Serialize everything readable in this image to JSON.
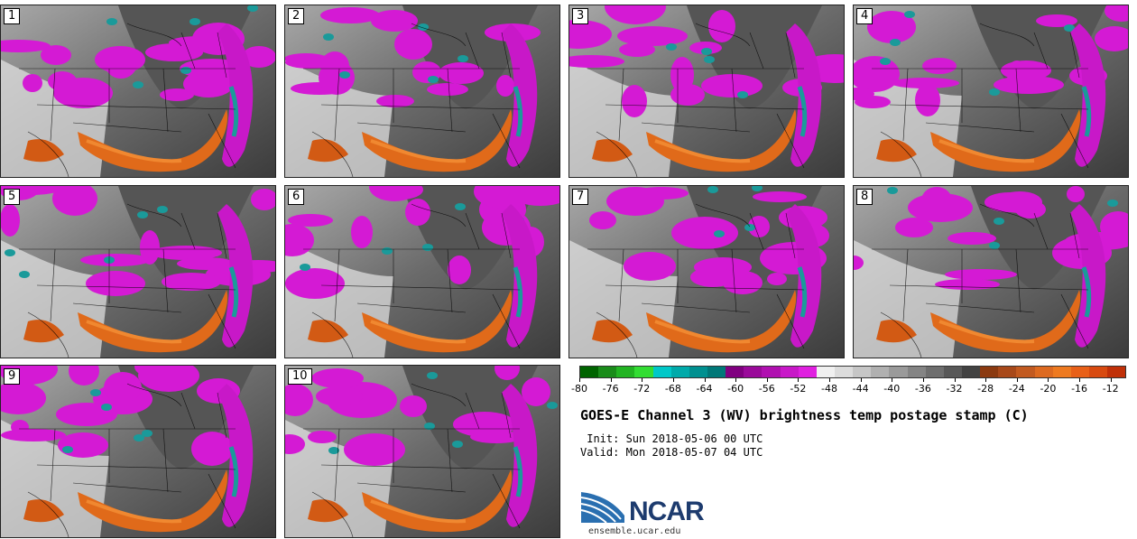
{
  "panels": [
    {
      "label": "1"
    },
    {
      "label": "2"
    },
    {
      "label": "3"
    },
    {
      "label": "4"
    },
    {
      "label": "5"
    },
    {
      "label": "6"
    },
    {
      "label": "7"
    },
    {
      "label": "8"
    },
    {
      "label": "9"
    },
    {
      "label": "10"
    }
  ],
  "colorbar": {
    "colors": [
      "#006400",
      "#1a8c1a",
      "#22b422",
      "#33dd33",
      "#00c8c8",
      "#00aaaa",
      "#009090",
      "#007878",
      "#800080",
      "#9a0a9a",
      "#b010b0",
      "#c818c8",
      "#e020e0",
      "#f0f0f0",
      "#dcdcdc",
      "#c6c6c6",
      "#b0b0b0",
      "#9a9a9a",
      "#848484",
      "#6e6e6e",
      "#585858",
      "#424242",
      "#8b3a10",
      "#a8491a",
      "#c25a20",
      "#dd6a20",
      "#ee7a20",
      "#e86018",
      "#d84a10",
      "#c03008"
    ],
    "min": -80,
    "max": -10,
    "tick_labels": [
      "-80",
      "-76",
      "-72",
      "-68",
      "-64",
      "-60",
      "-56",
      "-52",
      "-48",
      "-44",
      "-40",
      "-36",
      "-32",
      "-28",
      "-24",
      "-20",
      "-16",
      "-12"
    ]
  },
  "title": "GOES-E Channel 3 (WV) brightness temp postage stamp (C)",
  "init": " Init: Sun 2018-05-06 00 UTC",
  "valid": "Valid: Mon 2018-05-07 04 UTC",
  "logo_text": "NCAR",
  "url": "ensemble.ucar.edu"
}
